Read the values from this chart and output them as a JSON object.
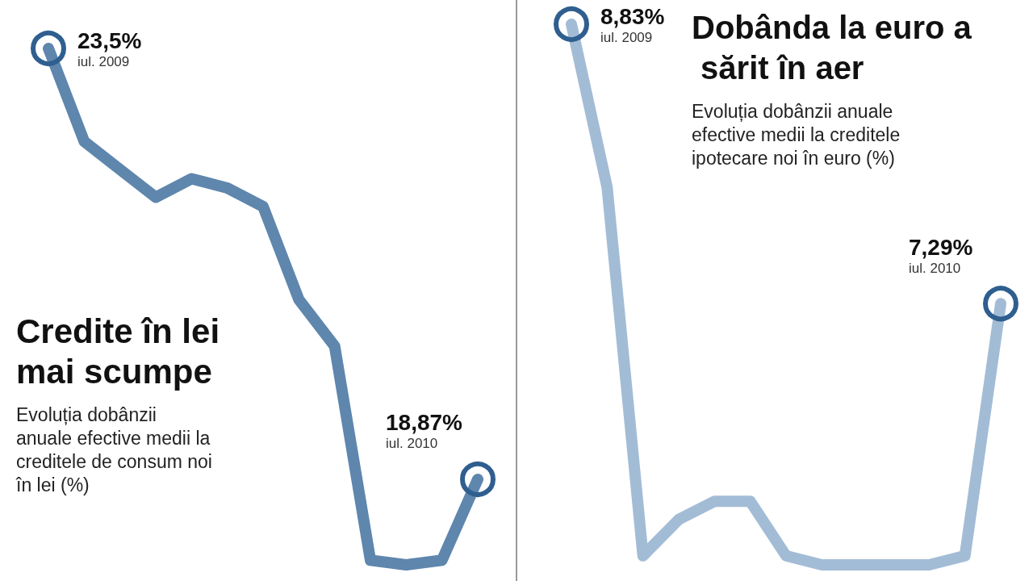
{
  "chart_data": [
    {
      "type": "line",
      "title": "Credite în lei mai scumpe",
      "subtitle": "Evoluția dobânzii anuale efective medii la creditele de consum noi în lei (%)",
      "categories": [
        null,
        null,
        null,
        null,
        null,
        null,
        null,
        null,
        null,
        null,
        null,
        null,
        null
      ],
      "series": [
        {
          "color": "#5f86ad",
          "values": [
            23.5,
            22.5,
            22.2,
            21.9,
            22.1,
            22.0,
            21.8,
            20.8,
            20.3,
            18.0,
            17.95,
            18.0,
            18.87
          ],
          "value_labels": [
            "23,5%",
            null,
            null,
            null,
            null,
            null,
            null,
            null,
            null,
            null,
            null,
            null,
            "18,87%"
          ]
        }
      ],
      "annotations": [
        "iul. 2009",
        "iul. 2010"
      ],
      "tick_labels": false
    },
    {
      "type": "line",
      "title": "Dobânda la euro a sărit în aer",
      "subtitle": "Evoluția dobânzii anuale efective medii la creditele ipotecare noi în euro (%)",
      "categories": [
        null,
        null,
        null,
        null,
        null,
        null,
        null,
        null,
        null,
        null,
        null,
        null,
        null
      ],
      "series": [
        {
          "color": "#a3bcd6",
          "values": [
            8.83,
            7.93,
            5.9,
            6.1,
            6.2,
            6.2,
            5.9,
            5.85,
            5.85,
            5.85,
            5.85,
            5.9,
            7.29
          ],
          "value_labels": [
            "8,83%",
            null,
            null,
            null,
            null,
            null,
            null,
            null,
            null,
            null,
            null,
            null,
            "7,29%"
          ]
        }
      ],
      "annotations": [
        "iul. 2009",
        "iul. 2010"
      ],
      "tick_labels": false
    }
  ]
}
